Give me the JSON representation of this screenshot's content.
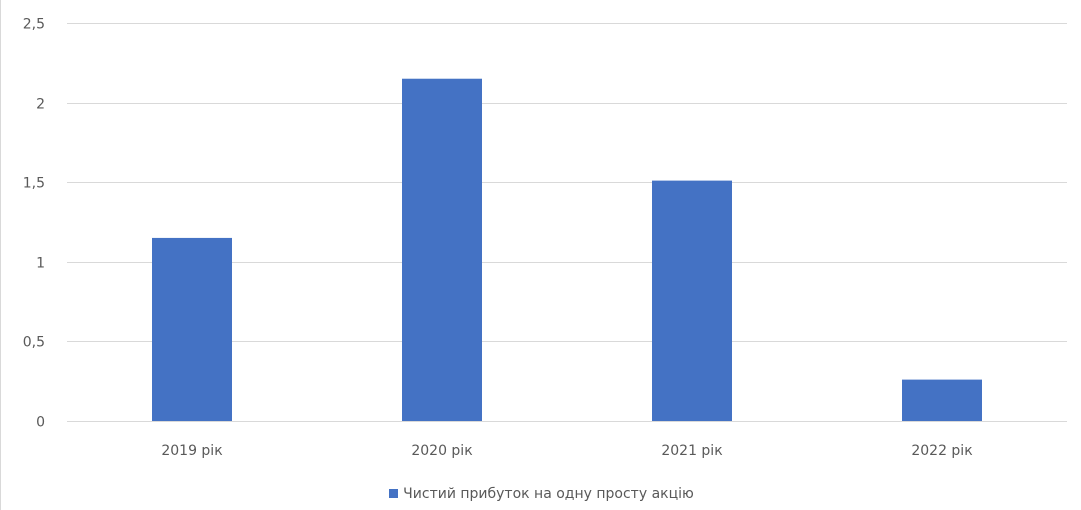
{
  "chart_data": {
    "type": "bar",
    "categories": [
      "2019 рік",
      "2020 рік",
      "2021 рік",
      "2022 рік"
    ],
    "series": [
      {
        "name": "Чистий прибуток на одну просту акцію",
        "values": [
          1.15,
          2.15,
          1.51,
          0.26
        ],
        "color": "#4472c4"
      }
    ],
    "yticks": [
      "0",
      "0,5",
      "1",
      "1,5",
      "2",
      "2,5"
    ],
    "ylim": [
      0,
      2.5
    ],
    "grid": true,
    "legend_position": "bottom",
    "colors": {
      "bar": "#4472c4",
      "gridline": "#d9d9d9",
      "text": "#595959"
    }
  }
}
